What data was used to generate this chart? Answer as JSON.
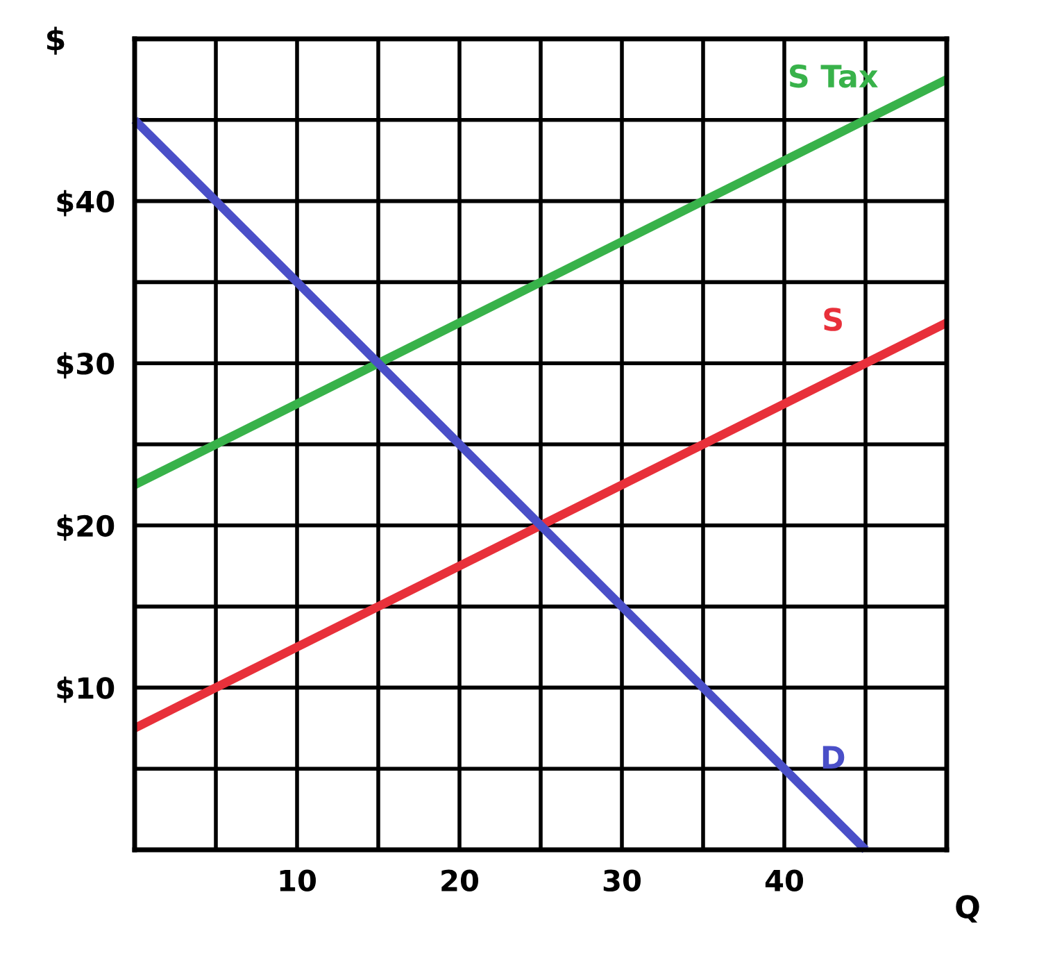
{
  "chart_data": {
    "type": "line",
    "xlabel": "Q",
    "ylabel": "$",
    "xlim": [
      0,
      50
    ],
    "ylim": [
      0,
      50
    ],
    "xticks": [
      {
        "value": 5,
        "label": null
      },
      10,
      {
        "value": 15,
        "label": null
      },
      20,
      {
        "value": 25,
        "label": null
      },
      30,
      {
        "value": 35,
        "label": null
      },
      40,
      {
        "value": 45,
        "label": null
      }
    ],
    "yticks": [
      {
        "value": 5,
        "label": null
      },
      {
        "value": 10,
        "label": "$10"
      },
      {
        "value": 15,
        "label": null
      },
      {
        "value": 20,
        "label": "$20"
      },
      {
        "value": 25,
        "label": null
      },
      {
        "value": 30,
        "label": "$30"
      },
      {
        "value": 35,
        "label": null
      },
      {
        "value": 40,
        "label": "$40"
      },
      {
        "value": 45,
        "label": null
      }
    ],
    "grid": true,
    "legend": false,
    "marker": "none",
    "line_style": "solid",
    "series": [
      {
        "name": "S Tax",
        "color": "#38b24a",
        "x": [
          0,
          50
        ],
        "values": [
          22.5,
          47.5
        ]
      },
      {
        "name": "S",
        "color": "#e8303a",
        "x": [
          0,
          50
        ],
        "values": [
          7.5,
          32.5
        ]
      },
      {
        "name": "D",
        "color": "#4a4fc8",
        "x": [
          0,
          45
        ],
        "values": [
          45,
          0
        ]
      }
    ]
  }
}
